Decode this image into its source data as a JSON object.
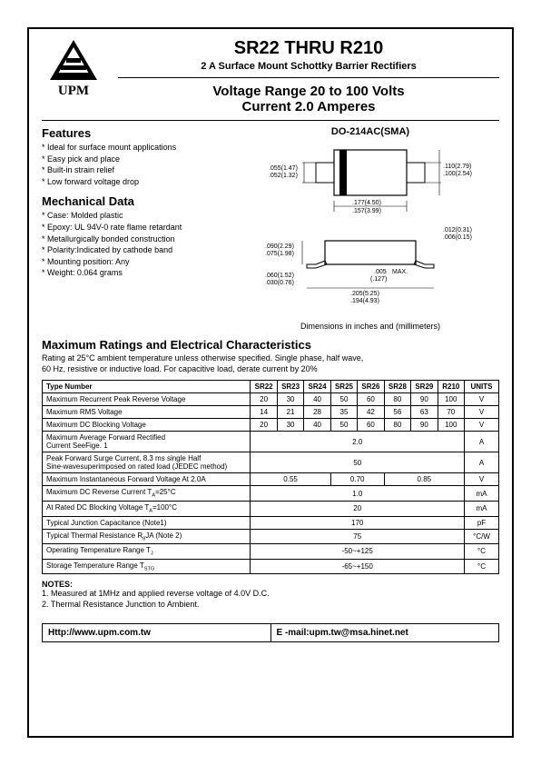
{
  "logo": {
    "text": "UPM"
  },
  "title": {
    "main": "SR22 THRU R210",
    "sub": "2 A  Surface Mount Schottky Barrier Rectifiers",
    "range": "Voltage Range 20 to 100 Volts",
    "current": "Current 2.0 Amperes"
  },
  "features": {
    "heading": "Features",
    "items": [
      "* Ideal for surface mount applications",
      "* Easy pick and place",
      "* Built-in strain relief",
      "* Low forward voltage drop"
    ]
  },
  "mech": {
    "heading": "Mechanical Data",
    "items": [
      "* Case: Molded plastic",
      "* Epoxy: UL 94V-0 rate flame retardant",
      "* Metallurgically bonded construction",
      "* Polarity:Indicated by cathode band",
      "* Mounting position: Any",
      "* Weight: 0.064 grams"
    ]
  },
  "package": {
    "title": "DO-214AC(SMA)",
    "dim_note": "Dimensions  in inches and  (millimeters)",
    "dims": {
      "a_top": ".055(1.47)",
      "a_bot": ".052(1.32)",
      "b_top": ".110(2.79)",
      "b_bot": ".100(2.54)",
      "c_top": ".177(4.50)",
      "c_bot": ".157(3.99)",
      "d_top": ".012(0.31)",
      "d_bot": ".006(0.15)",
      "e_top": ".090(2.29)",
      "e_bot": ".075(1.98)",
      "f_top": ".060(1.52)",
      "f_bot": ".030(0.76)",
      "g_top": ".005",
      "g_bot": "(.127)",
      "g_max": "MAX.",
      "h_top": ".205(5.25)",
      "h_bot": ".194(4.93)"
    }
  },
  "ratings": {
    "heading": "Maximum Ratings and Electrical Characteristics",
    "note": "Rating at 25°C ambient temperature unless otherwise specified. Single phase, half wave,\n60 Hz, resistive or inductive load. For capacitive load, derate current by 20%"
  },
  "table": {
    "type_header": "Type Number",
    "parts": [
      "SR22",
      "SR23",
      "SR24",
      "SR25",
      "SR26",
      "SR28",
      "SR29",
      "R210"
    ],
    "unit_header": "UNITS",
    "rows": [
      {
        "label": "Maximum Recurrent Peak Reverse Voltage",
        "vals": [
          "20",
          "30",
          "40",
          "50",
          "60",
          "80",
          "90",
          "100"
        ],
        "unit": "V"
      },
      {
        "label": "Maximum RMS Voltage",
        "vals": [
          "14",
          "21",
          "28",
          "35",
          "42",
          "56",
          "63",
          "70"
        ],
        "unit": "V"
      },
      {
        "label": "Maximum DC Blocking Voltage",
        "vals": [
          "20",
          "30",
          "40",
          "50",
          "60",
          "80",
          "90",
          "100"
        ],
        "unit": "V"
      }
    ],
    "span_rows": [
      {
        "label": "Maximum Average Forward Rectified\nCurrent SeeFige. 1",
        "span": "2.0",
        "unit": "A"
      },
      {
        "label": "Peak Forward Surge Current, 8.3 ms single Half\nSine-wavesuperimposed on rated load (JEDEC method)",
        "span": "50",
        "unit": "A"
      }
    ],
    "vf_row": {
      "label": "Maximum Instantaneous Forward Voltage At 2.0A",
      "groups": [
        "0.55",
        "0.70",
        "0.85"
      ],
      "unit": "V"
    },
    "ir_rows": [
      {
        "label_html": "Maximum DC Reverse Current T<span class='sub'>A</span>=25°C",
        "span": "1.0",
        "unit": "mA"
      },
      {
        "label_html": "At Rated DC Blocking Voltage T<span class='sub'>A</span>=100°C",
        "span": "20",
        "unit": "mA"
      }
    ],
    "misc_rows": [
      {
        "label": "Typical Junction Capacitance (Note1)",
        "span": "170",
        "unit": "pF"
      },
      {
        "label_html": "Typical Thermal Resistance R<span class='sub'>θ</span>JA (Note 2)",
        "span": "75",
        "unit": "°C/W"
      },
      {
        "label_html": "Operating  Temperature Range T<span class='sub'>J</span>",
        "span": "-50~+125",
        "unit": "°C"
      },
      {
        "label_html": "Storage Temperature Range T<span class='sub'>STG</span>",
        "span": "-65~+150",
        "unit": "°C"
      }
    ]
  },
  "notes": {
    "heading": "NOTES:",
    "lines": [
      "1. Measured at 1MHz and applied reverse voltage of 4.0V D.C.",
      "2. Thermal Resistance Junction to Ambient."
    ]
  },
  "footer": {
    "url": "Http://www.upm.com.tw",
    "email": "E -mail:upm.tw@msa.hinet.net"
  },
  "colors": {
    "border": "#000000",
    "text": "#000000",
    "bg": "#ffffff"
  }
}
